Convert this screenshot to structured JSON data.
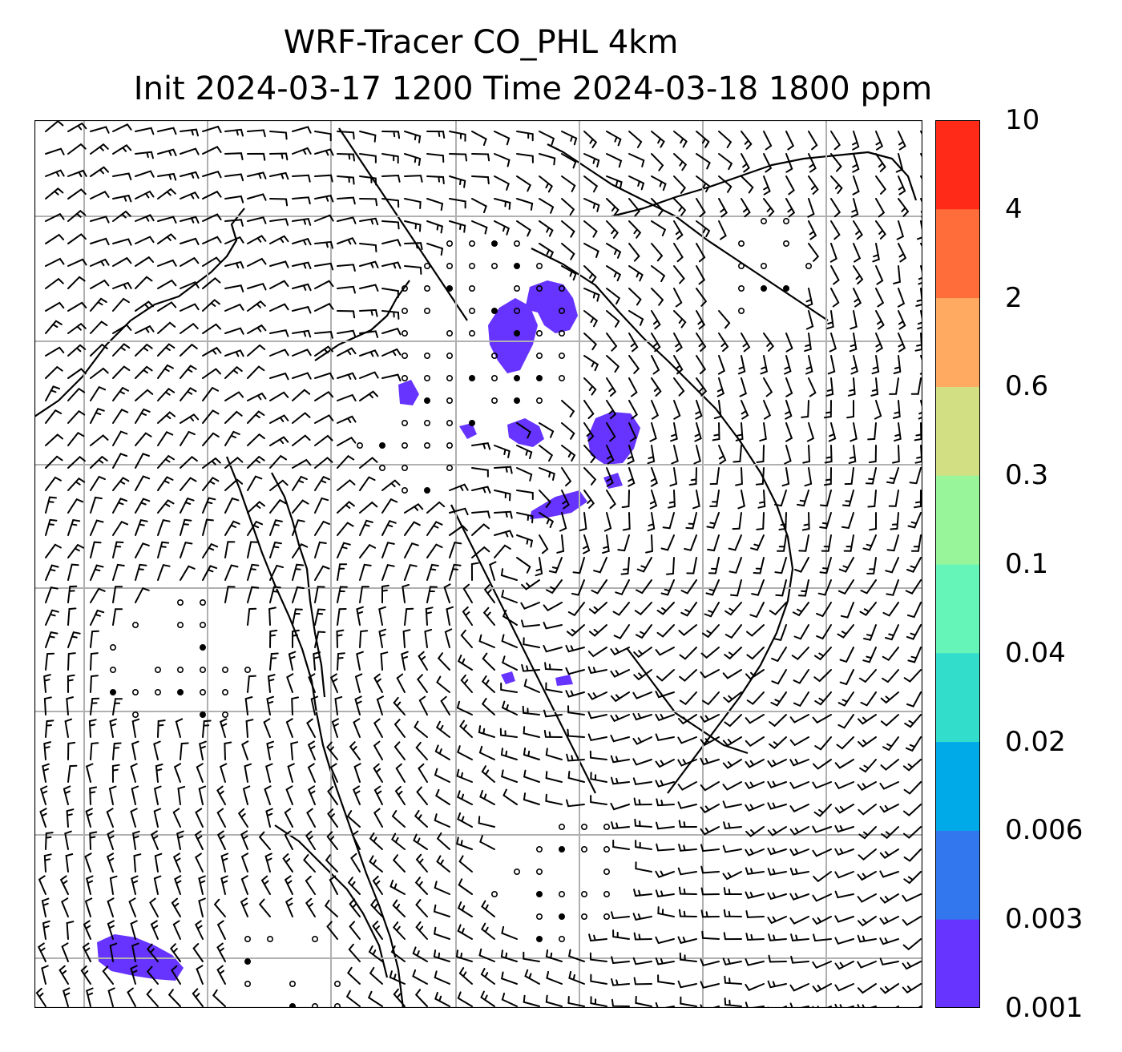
{
  "title": {
    "line1": "WRF-Tracer CO_PHL 4km",
    "line2": "Init 2024-03-17 1200 Time 2024-03-18 1800 ppm"
  },
  "colorbar": {
    "ticks": [
      "0.001",
      "0.003",
      "0.006",
      "0.02",
      "0.04",
      "0.1",
      "0.3",
      "0.6",
      "2",
      "4",
      "10"
    ],
    "colors": [
      "#6633ff",
      "#3377ee",
      "#00aae8",
      "#33ddcc",
      "#66f5b8",
      "#99f59a",
      "#d2df82",
      "#ffaa60",
      "#ff6e3a",
      "#ff2a18"
    ]
  },
  "map": {
    "coastline_color": "#000000",
    "gridline_color": "#b0b0b0",
    "tracer_color": "#6633ff",
    "barb_color": "#000000"
  }
}
